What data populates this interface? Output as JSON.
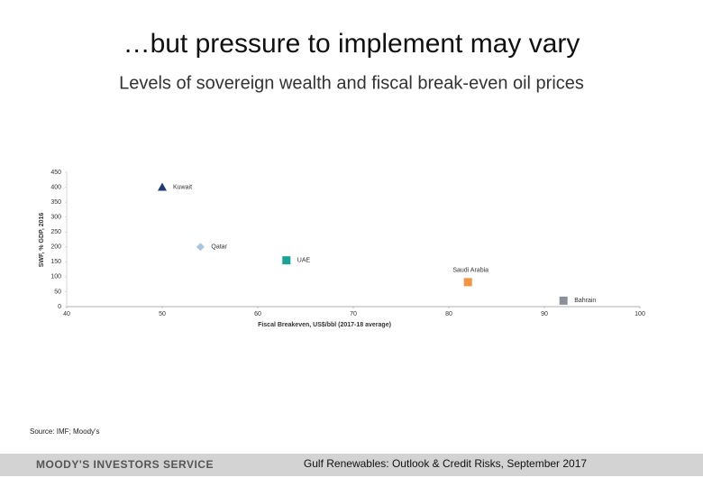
{
  "chart_data": {
    "type": "scatter",
    "title": "…but pressure to implement may vary",
    "subtitle": "Levels of sovereign wealth and fiscal break-even oil prices",
    "x_label": "Fiscal Breakeven, US$/bbl (2017-18 average)",
    "y_label": "SWF, % GDP, 2016",
    "xlim": [
      40,
      100
    ],
    "xticks": [
      40,
      50,
      60,
      70,
      80,
      90,
      100
    ],
    "ylim": [
      0,
      450
    ],
    "yticks": [
      0,
      50,
      100,
      150,
      200,
      250,
      300,
      350,
      400,
      450
    ],
    "series": [
      {
        "name": "Kuwait",
        "color": "#1f3b73",
        "marker": "triangle",
        "x": [
          50
        ],
        "values": [
          400
        ]
      },
      {
        "name": "Qatar",
        "color": "#a9c4e2",
        "marker": "diamond",
        "x": [
          54
        ],
        "values": [
          200
        ]
      },
      {
        "name": "UAE",
        "color": "#17a398",
        "marker": "square",
        "x": [
          63
        ],
        "values": [
          155
        ]
      },
      {
        "name": "Saudi Arabia",
        "color": "#f29440",
        "marker": "square",
        "x": [
          82
        ],
        "values": [
          82
        ]
      },
      {
        "name": "Bahrain",
        "color": "#8a909a",
        "marker": "square",
        "x": [
          92
        ],
        "values": [
          20
        ]
      }
    ],
    "source": "Source: IMF; Moody's"
  },
  "footer": {
    "brand": "MOODY'S INVESTORS SERVICE",
    "report": "Gulf Renewables: Outlook & Credit Risks, September 2017"
  }
}
